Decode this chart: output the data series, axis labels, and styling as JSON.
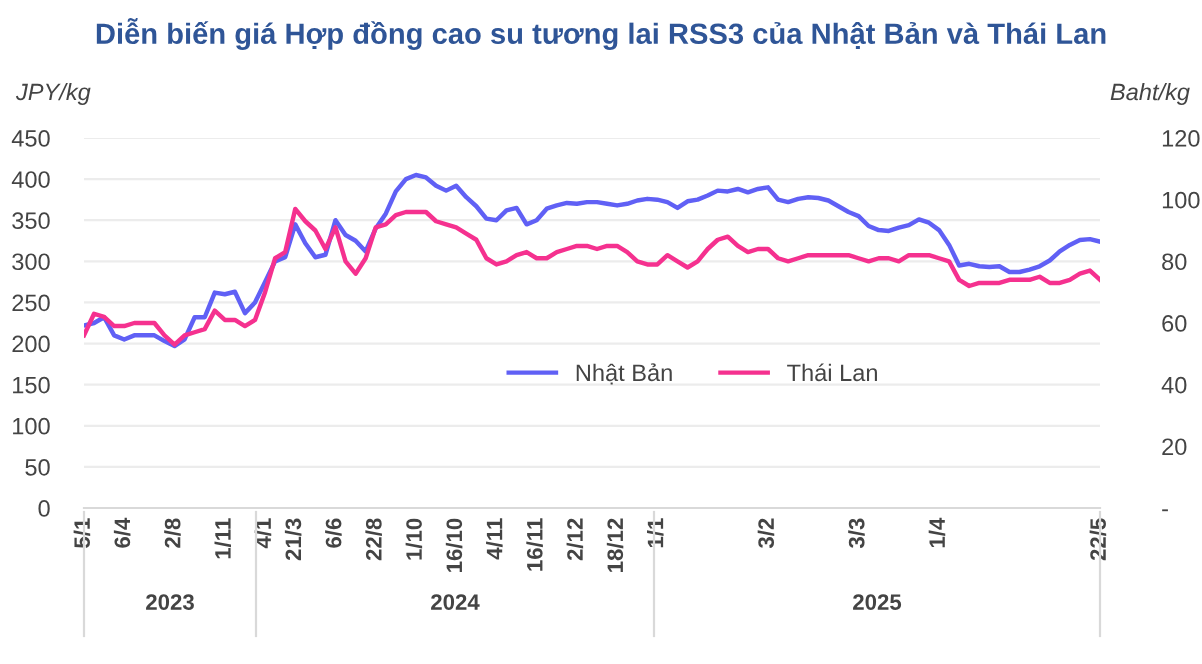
{
  "chart_data": {
    "type": "line",
    "title": "Diễn biến giá Hợp đồng cao su tương lai RSS3 của Nhật Bản và Thái Lan",
    "ylabel": "JPY/kg",
    "y2label": "Baht/kg",
    "categories": [
      "5/1",
      null,
      null,
      null,
      "6/4",
      null,
      null,
      null,
      null,
      "2/8",
      null,
      null,
      null,
      null,
      "1/11",
      null,
      null,
      null,
      "4/1",
      null,
      null,
      "21/3",
      null,
      null,
      null,
      "6/6",
      null,
      null,
      null,
      "22/8",
      null,
      null,
      null,
      "1/10",
      null,
      null,
      null,
      "16/10",
      null,
      null,
      null,
      "4/11",
      null,
      null,
      null,
      "16/11",
      null,
      null,
      null,
      "2/12",
      null,
      null,
      null,
      "18/12",
      null,
      null,
      null,
      "1/1",
      null,
      null,
      null,
      null,
      null,
      null,
      null,
      null,
      null,
      null,
      "3/2",
      null,
      null,
      null,
      null,
      null,
      null,
      null,
      null,
      "3/3",
      null,
      null,
      null,
      null,
      null,
      null,
      null,
      "1/4",
      null,
      null,
      null,
      null,
      null,
      null,
      null,
      null,
      null,
      null,
      null,
      null,
      null,
      null,
      null,
      "22/5"
    ],
    "series": [
      {
        "name": "Nhật Bản",
        "color": "#6060f5",
        "values": [
          222,
          225,
          232,
          210,
          205,
          210,
          210,
          210,
          203,
          197,
          205,
          232,
          232,
          262,
          260,
          263,
          237,
          250,
          275,
          300,
          305,
          345,
          322,
          305,
          308,
          350,
          332,
          325,
          312,
          340,
          358,
          385,
          400,
          405,
          402,
          392,
          386,
          392,
          378,
          367,
          352,
          350,
          362,
          365,
          345,
          350,
          364,
          368,
          371,
          370,
          372,
          372,
          370,
          368,
          370,
          374,
          376,
          375,
          372,
          365,
          373,
          375,
          380,
          386,
          385,
          388,
          384,
          388,
          390,
          375,
          372,
          376,
          378,
          377,
          374,
          367,
          360,
          355,
          343,
          338,
          337,
          341,
          344,
          351,
          347,
          338,
          320,
          295,
          297,
          294,
          293,
          294,
          287,
          287,
          290,
          294,
          301,
          312,
          320,
          326,
          327,
          324
        ]
      },
      {
        "name": "Thái Lan",
        "color": "#f5318f",
        "axis": "y2",
        "values": [
          56,
          63,
          62,
          59,
          59,
          60,
          60,
          60,
          56,
          53,
          56,
          57,
          58,
          64,
          61,
          61,
          59,
          61,
          70,
          81,
          83,
          97,
          93,
          90,
          84,
          91,
          80,
          76,
          81,
          91,
          92,
          95,
          96,
          96,
          96,
          93,
          92,
          91,
          89,
          87,
          81,
          79,
          80,
          82,
          83,
          81,
          81,
          83,
          84,
          85,
          85,
          84,
          85,
          85,
          83,
          80,
          79,
          79,
          82,
          80,
          78,
          80,
          84,
          87,
          88,
          85,
          83,
          84,
          84,
          81,
          80,
          81,
          82,
          82,
          82,
          82,
          82,
          81,
          80,
          81,
          81,
          80,
          82,
          82,
          82,
          81,
          80,
          74,
          72,
          73,
          73,
          73,
          74,
          74,
          74,
          75,
          73,
          73,
          74,
          76,
          77,
          74
        ]
      }
    ],
    "ylim": [
      0,
      450
    ],
    "yticks": [
      0,
      50,
      100,
      150,
      200,
      250,
      300,
      350,
      400,
      450
    ],
    "y2lim": [
      0,
      120
    ],
    "y2ticks": [
      {
        "value": 0,
        "label": "-"
      },
      20,
      40,
      60,
      80,
      100,
      120
    ],
    "annotations": [
      "2023",
      "2024",
      "2025"
    ],
    "grid": "y",
    "legend": "center",
    "marker": "none",
    "line_style": "solid"
  }
}
